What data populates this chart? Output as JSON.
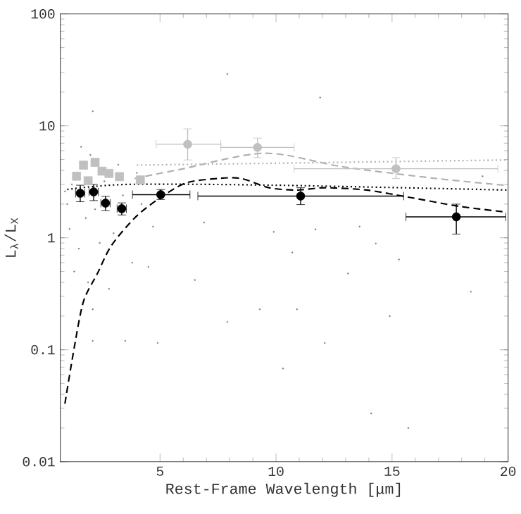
{
  "chart_data": {
    "type": "scatter",
    "xlabel": "Rest-Frame Wavelength [μm]",
    "ylabel": "L$_{λ}$/L$_{X}$",
    "xlim": [
      0.7,
      20
    ],
    "ylim": [
      0.01,
      100
    ],
    "xticks": [
      5,
      10,
      15,
      20
    ],
    "yticks": [
      0.01,
      0.1,
      1,
      10,
      100
    ],
    "log": "y",
    "series": [
      {
        "marker": "dot",
        "color": "#808080",
        "x": [
          4.5,
          10.7,
          12.1,
          14.1,
          14.9,
          18.4,
          15.7,
          10.3,
          9.3,
          7.9,
          4.9,
          3.5,
          2.1,
          2.1,
          4.7,
          14.3,
          15.3,
          10.9,
          6.5,
          13.1,
          11.7,
          7.9,
          11.9,
          2.1,
          6.9,
          13.6,
          18.9,
          9.9,
          1.0,
          1.2,
          1.1,
          1.5,
          1.8,
          2.0,
          2.4,
          2.6,
          3.0,
          3.4,
          3.8,
          1.3,
          2.8,
          1.6,
          3.2,
          4.2,
          0.9,
          2.2,
          4.0,
          1.9
        ],
        "values": [
          0.55,
          0.74,
          0.115,
          0.027,
          0.2,
          0.33,
          0.02,
          0.068,
          0.23,
          0.177,
          0.115,
          0.12,
          0.12,
          0.23,
          1.26,
          0.89,
          0.64,
          0.23,
          0.42,
          0.48,
          1.19,
          29,
          17.9,
          13.5,
          1.37,
          1.26,
          3.55,
          1.13,
          2.0,
          3.0,
          1.2,
          0.8,
          1.5,
          5.5,
          0.9,
          3.2,
          1.1,
          2.4,
          0.6,
          0.5,
          0.35,
          6.5,
          4.5,
          2.0,
          2.6,
          1.8,
          3.8,
          0.4
        ]
      },
      {
        "type": "line",
        "line_style": "dotted",
        "color": "#b0b0b0",
        "x": [
          4.0,
          12,
          20
        ],
        "values": [
          4.46,
          4.7,
          4.96
        ]
      },
      {
        "type": "line",
        "line_style": "dashed",
        "color": "#b0b0b0",
        "x": [
          3.9,
          5.9,
          9.5,
          12.9,
          16.9,
          19.9
        ],
        "values": [
          3.39,
          4.1,
          5.7,
          4.3,
          3.39,
          2.94
        ]
      },
      {
        "type": "line",
        "line_style": "dotted",
        "color": "#000000",
        "x": [
          1.0,
          3.6,
          10,
          20
        ],
        "values": [
          2.7,
          3.0,
          2.95,
          2.67
        ]
      },
      {
        "type": "line",
        "line_style": "dashed",
        "color": "#000000",
        "x": [
          0.9,
          1.3,
          1.7,
          2.3,
          2.9,
          3.9,
          4.9,
          6.1,
          7.5,
          8.5,
          9.7,
          10.9,
          12.1,
          13.9,
          15.7,
          17.9,
          19.9
        ],
        "values": [
          0.033,
          0.104,
          0.27,
          0.48,
          0.85,
          1.5,
          2.2,
          3.08,
          3.39,
          3.39,
          2.8,
          2.67,
          2.8,
          2.67,
          2.31,
          1.91,
          1.7
        ]
      },
      {
        "type": "scatter",
        "marker": "square",
        "color": "#c0c0c0",
        "x": [
          1.7,
          2.2,
          2.5,
          2.8,
          3.25,
          4.15,
          1.4,
          1.9
        ],
        "values": [
          4.46,
          4.72,
          3.94,
          3.76,
          3.52,
          3.29,
          3.55,
          3.23
        ]
      },
      {
        "type": "scatter",
        "marker": "circle",
        "color": "#c0c0c0",
        "x": [
          6.19,
          9.2,
          15.17
        ],
        "values": [
          6.85,
          6.42,
          4.14
        ],
        "errors": [
          [
            4.96,
            9.4
          ],
          [
            5.2,
            7.77
          ],
          [
            3.39,
            5.2
          ]
        ],
        "xerrors": [
          [
            4.83,
            7.62
          ],
          [
            7.62,
            10.78
          ],
          [
            10.78,
            19.56
          ]
        ]
      },
      {
        "type": "scatter",
        "marker": "circle",
        "color": "#000000",
        "x": [
          1.56,
          2.14,
          2.65,
          3.35,
          5.03,
          11.06,
          17.77
        ],
        "values": [
          2.5,
          2.57,
          2.04,
          1.82,
          2.43,
          2.36,
          1.54
        ],
        "errors": [
          [
            2.1,
            2.95
          ],
          [
            2.15,
            3.0
          ],
          [
            1.75,
            2.35
          ],
          [
            1.6,
            2.05
          ],
          [
            2.2,
            2.7
          ],
          [
            1.98,
            2.8
          ],
          [
            1.08,
            2.0
          ]
        ],
        "xerrors": [
          0.2,
          0.2,
          0.2,
          0.2,
          [
            3.81,
            6.29
          ],
          [
            6.63,
            15.5
          ],
          [
            15.6,
            19.9
          ]
        ]
      }
    ]
  }
}
